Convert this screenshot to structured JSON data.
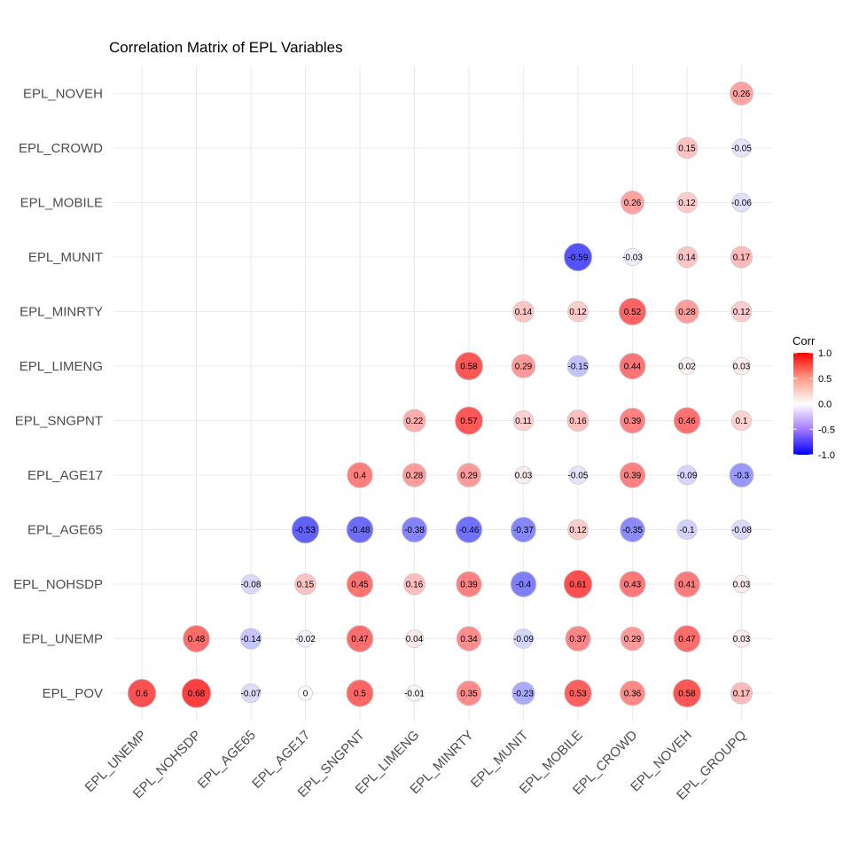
{
  "chart_data": {
    "type": "heatmap",
    "title": "Correlation Matrix of EPL Variables",
    "x_variables": [
      "EPL_UNEMP",
      "EPL_NOHSDP",
      "EPL_AGE65",
      "EPL_AGE17",
      "EPL_SNGPNT",
      "EPL_LIMENG",
      "EPL_MINRTY",
      "EPL_MUNIT",
      "EPL_MOBILE",
      "EPL_CROWD",
      "EPL_NOVEH",
      "EPL_GROUPQ"
    ],
    "y_variables": [
      "EPL_POV",
      "EPL_UNEMP",
      "EPL_NOHSDP",
      "EPL_AGE65",
      "EPL_AGE17",
      "EPL_SNGPNT",
      "EPL_LIMENG",
      "EPL_MINRTY",
      "EPL_MUNIT",
      "EPL_MOBILE",
      "EPL_CROWD",
      "EPL_NOVEH"
    ],
    "cells": [
      {
        "x": "EPL_UNEMP",
        "y": "EPL_POV",
        "value": 0.6
      },
      {
        "x": "EPL_NOHSDP",
        "y": "EPL_POV",
        "value": 0.68
      },
      {
        "x": "EPL_AGE65",
        "y": "EPL_POV",
        "value": -0.07
      },
      {
        "x": "EPL_AGE17",
        "y": "EPL_POV",
        "value": 0
      },
      {
        "x": "EPL_SNGPNT",
        "y": "EPL_POV",
        "value": 0.5
      },
      {
        "x": "EPL_LIMENG",
        "y": "EPL_POV",
        "value": -0.01
      },
      {
        "x": "EPL_MINRTY",
        "y": "EPL_POV",
        "value": 0.35
      },
      {
        "x": "EPL_MUNIT",
        "y": "EPL_POV",
        "value": -0.23
      },
      {
        "x": "EPL_MOBILE",
        "y": "EPL_POV",
        "value": 0.53
      },
      {
        "x": "EPL_CROWD",
        "y": "EPL_POV",
        "value": 0.36
      },
      {
        "x": "EPL_NOVEH",
        "y": "EPL_POV",
        "value": 0.58
      },
      {
        "x": "EPL_GROUPQ",
        "y": "EPL_POV",
        "value": 0.17
      },
      {
        "x": "EPL_NOHSDP",
        "y": "EPL_UNEMP",
        "value": 0.48
      },
      {
        "x": "EPL_AGE65",
        "y": "EPL_UNEMP",
        "value": -0.14
      },
      {
        "x": "EPL_AGE17",
        "y": "EPL_UNEMP",
        "value": -0.02
      },
      {
        "x": "EPL_SNGPNT",
        "y": "EPL_UNEMP",
        "value": 0.47
      },
      {
        "x": "EPL_LIMENG",
        "y": "EPL_UNEMP",
        "value": 0.04
      },
      {
        "x": "EPL_MINRTY",
        "y": "EPL_UNEMP",
        "value": 0.34
      },
      {
        "x": "EPL_MUNIT",
        "y": "EPL_UNEMP",
        "value": -0.09
      },
      {
        "x": "EPL_MOBILE",
        "y": "EPL_UNEMP",
        "value": 0.37
      },
      {
        "x": "EPL_CROWD",
        "y": "EPL_UNEMP",
        "value": 0.29
      },
      {
        "x": "EPL_NOVEH",
        "y": "EPL_UNEMP",
        "value": 0.47
      },
      {
        "x": "EPL_GROUPQ",
        "y": "EPL_UNEMP",
        "value": 0.03
      },
      {
        "x": "EPL_AGE65",
        "y": "EPL_NOHSDP",
        "value": -0.08
      },
      {
        "x": "EPL_AGE17",
        "y": "EPL_NOHSDP",
        "value": 0.15
      },
      {
        "x": "EPL_SNGPNT",
        "y": "EPL_NOHSDP",
        "value": 0.45
      },
      {
        "x": "EPL_LIMENG",
        "y": "EPL_NOHSDP",
        "value": 0.16
      },
      {
        "x": "EPL_MINRTY",
        "y": "EPL_NOHSDP",
        "value": 0.39
      },
      {
        "x": "EPL_MUNIT",
        "y": "EPL_NOHSDP",
        "value": -0.4
      },
      {
        "x": "EPL_MOBILE",
        "y": "EPL_NOHSDP",
        "value": 0.61
      },
      {
        "x": "EPL_CROWD",
        "y": "EPL_NOHSDP",
        "value": 0.43
      },
      {
        "x": "EPL_NOVEH",
        "y": "EPL_NOHSDP",
        "value": 0.41
      },
      {
        "x": "EPL_GROUPQ",
        "y": "EPL_NOHSDP",
        "value": 0.03
      },
      {
        "x": "EPL_AGE17",
        "y": "EPL_AGE65",
        "value": -0.53
      },
      {
        "x": "EPL_SNGPNT",
        "y": "EPL_AGE65",
        "value": -0.48
      },
      {
        "x": "EPL_LIMENG",
        "y": "EPL_AGE65",
        "value": -0.38
      },
      {
        "x": "EPL_MINRTY",
        "y": "EPL_AGE65",
        "value": -0.46
      },
      {
        "x": "EPL_MUNIT",
        "y": "EPL_AGE65",
        "value": -0.37
      },
      {
        "x": "EPL_MOBILE",
        "y": "EPL_AGE65",
        "value": 0.12
      },
      {
        "x": "EPL_CROWD",
        "y": "EPL_AGE65",
        "value": -0.35
      },
      {
        "x": "EPL_NOVEH",
        "y": "EPL_AGE65",
        "value": -0.1
      },
      {
        "x": "EPL_GROUPQ",
        "y": "EPL_AGE65",
        "value": -0.08
      },
      {
        "x": "EPL_SNGPNT",
        "y": "EPL_AGE17",
        "value": 0.4
      },
      {
        "x": "EPL_LIMENG",
        "y": "EPL_AGE17",
        "value": 0.28
      },
      {
        "x": "EPL_MINRTY",
        "y": "EPL_AGE17",
        "value": 0.29
      },
      {
        "x": "EPL_MUNIT",
        "y": "EPL_AGE17",
        "value": 0.03
      },
      {
        "x": "EPL_MOBILE",
        "y": "EPL_AGE17",
        "value": -0.05
      },
      {
        "x": "EPL_CROWD",
        "y": "EPL_AGE17",
        "value": 0.39
      },
      {
        "x": "EPL_NOVEH",
        "y": "EPL_AGE17",
        "value": -0.09
      },
      {
        "x": "EPL_GROUPQ",
        "y": "EPL_AGE17",
        "value": -0.3
      },
      {
        "x": "EPL_LIMENG",
        "y": "EPL_SNGPNT",
        "value": 0.22
      },
      {
        "x": "EPL_MINRTY",
        "y": "EPL_SNGPNT",
        "value": 0.57
      },
      {
        "x": "EPL_MUNIT",
        "y": "EPL_SNGPNT",
        "value": 0.11
      },
      {
        "x": "EPL_MOBILE",
        "y": "EPL_SNGPNT",
        "value": 0.16
      },
      {
        "x": "EPL_CROWD",
        "y": "EPL_SNGPNT",
        "value": 0.39
      },
      {
        "x": "EPL_NOVEH",
        "y": "EPL_SNGPNT",
        "value": 0.46
      },
      {
        "x": "EPL_GROUPQ",
        "y": "EPL_SNGPNT",
        "value": 0.1
      },
      {
        "x": "EPL_MINRTY",
        "y": "EPL_LIMENG",
        "value": 0.58
      },
      {
        "x": "EPL_MUNIT",
        "y": "EPL_LIMENG",
        "value": 0.29
      },
      {
        "x": "EPL_MOBILE",
        "y": "EPL_LIMENG",
        "value": -0.15
      },
      {
        "x": "EPL_CROWD",
        "y": "EPL_LIMENG",
        "value": 0.44
      },
      {
        "x": "EPL_NOVEH",
        "y": "EPL_LIMENG",
        "value": 0.02
      },
      {
        "x": "EPL_GROUPQ",
        "y": "EPL_LIMENG",
        "value": 0.03
      },
      {
        "x": "EPL_MUNIT",
        "y": "EPL_MINRTY",
        "value": 0.14
      },
      {
        "x": "EPL_MOBILE",
        "y": "EPL_MINRTY",
        "value": 0.12
      },
      {
        "x": "EPL_CROWD",
        "y": "EPL_MINRTY",
        "value": 0.52
      },
      {
        "x": "EPL_NOVEH",
        "y": "EPL_MINRTY",
        "value": 0.28
      },
      {
        "x": "EPL_GROUPQ",
        "y": "EPL_MINRTY",
        "value": 0.12
      },
      {
        "x": "EPL_MOBILE",
        "y": "EPL_MUNIT",
        "value": -0.59
      },
      {
        "x": "EPL_CROWD",
        "y": "EPL_MUNIT",
        "value": -0.03
      },
      {
        "x": "EPL_NOVEH",
        "y": "EPL_MUNIT",
        "value": 0.14
      },
      {
        "x": "EPL_GROUPQ",
        "y": "EPL_MUNIT",
        "value": 0.17
      },
      {
        "x": "EPL_CROWD",
        "y": "EPL_MOBILE",
        "value": 0.26
      },
      {
        "x": "EPL_NOVEH",
        "y": "EPL_MOBILE",
        "value": 0.12
      },
      {
        "x": "EPL_GROUPQ",
        "y": "EPL_MOBILE",
        "value": -0.06
      },
      {
        "x": "EPL_NOVEH",
        "y": "EPL_CROWD",
        "value": 0.15
      },
      {
        "x": "EPL_GROUPQ",
        "y": "EPL_CROWD",
        "value": -0.05
      },
      {
        "x": "EPL_GROUPQ",
        "y": "EPL_NOVEH",
        "value": 0.26
      }
    ],
    "legend": {
      "title": "Corr",
      "ticks": [
        "1.0",
        "0.5",
        "0.0",
        "-0.5",
        "-1.0"
      ],
      "range": [
        -1,
        1
      ],
      "low_color": "#0000ff",
      "mid_color": "#ffffff",
      "high_color": "#ff0000",
      "placement": "right"
    },
    "grid": true,
    "marker": "circle sized by absolute correlation"
  }
}
